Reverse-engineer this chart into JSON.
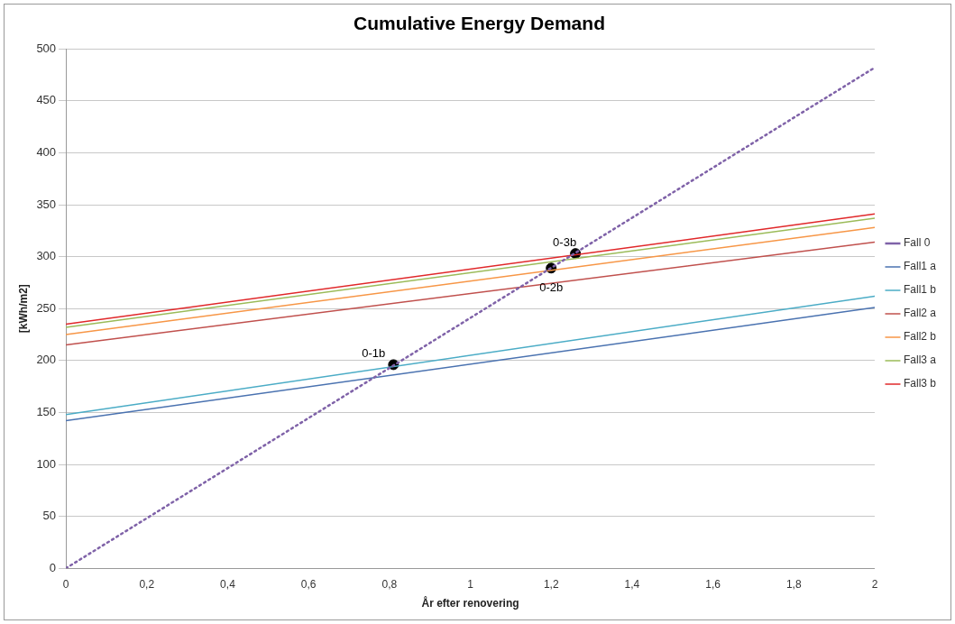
{
  "chart_data": {
    "type": "line",
    "title": "Cumulative Energy Demand",
    "xlabel": "År efter renovering",
    "ylabel": "[kWh/m2]",
    "x": [
      0,
      2
    ],
    "series": [
      {
        "name": "Fall 0",
        "color": "#7f62a8",
        "values": [
          0,
          482
        ],
        "line_style": "dotted"
      },
      {
        "name": "Fall1 a",
        "color": "#4a72b0",
        "values": [
          142,
          251
        ]
      },
      {
        "name": "Fall1 b",
        "color": "#4bacc6",
        "values": [
          148,
          262
        ]
      },
      {
        "name": "Fall2 a",
        "color": "#c0504d",
        "values": [
          215,
          314
        ]
      },
      {
        "name": "Fall2 b",
        "color": "#f79646",
        "values": [
          225,
          328
        ]
      },
      {
        "name": "Fall3 a",
        "color": "#9bbb59",
        "values": [
          232,
          337
        ]
      },
      {
        "name": "Fall3 b",
        "color": "#e0282a",
        "values": [
          235,
          341
        ]
      },
      {
        "type": "scatter",
        "color": "#000000",
        "x": [
          0.81,
          1.2,
          1.26
        ],
        "values": [
          196,
          289,
          303
        ],
        "marker": "circle"
      }
    ],
    "annotations": [
      {
        "text": "0-1b",
        "x": 0.81,
        "y": 196
      },
      {
        "text": "0-2b",
        "x": 1.2,
        "y": 289
      },
      {
        "text": "0-3b",
        "x": 1.26,
        "y": 303
      }
    ],
    "xlim": [
      0,
      2
    ],
    "xticks": [
      0,
      {
        "value": 0.2,
        "label": "0,2"
      },
      {
        "value": 0.4,
        "label": "0,4"
      },
      {
        "value": 0.6,
        "label": "0,6"
      },
      {
        "value": 0.8,
        "label": "0,8"
      },
      1,
      {
        "value": 1.2,
        "label": "1,2"
      },
      {
        "value": 1.4,
        "label": "1,4"
      },
      {
        "value": 1.6,
        "label": "1,6"
      },
      {
        "value": 1.8,
        "label": "1,8"
      },
      2
    ],
    "ylim": [
      0,
      500
    ],
    "yticks": [
      0,
      50,
      100,
      150,
      200,
      250,
      300,
      350,
      400,
      450,
      500
    ],
    "grid": "y",
    "legend": "right",
    "marker": "none",
    "line_style": "solid"
  }
}
